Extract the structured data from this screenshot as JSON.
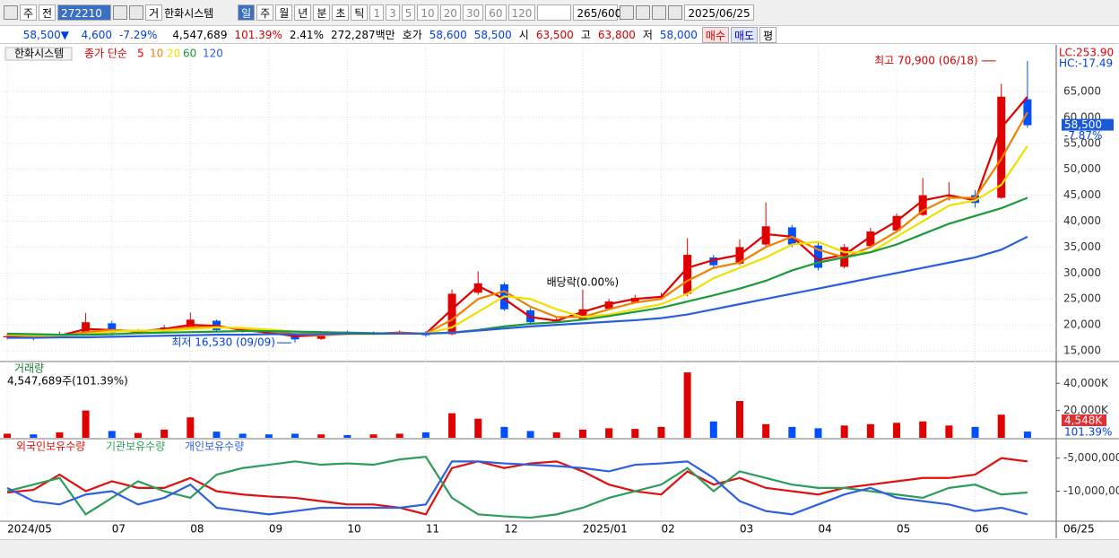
{
  "toolbar": {
    "period": "주",
    "prev": "전",
    "code": "272210",
    "exchange": "거",
    "name": "한화시스템",
    "timeframes": [
      "일",
      "주",
      "월",
      "년",
      "분",
      "초",
      "틱"
    ],
    "intervals": [
      "1",
      "3",
      "5",
      "10",
      "20",
      "30",
      "60",
      "120"
    ],
    "count": "265/600",
    "date": "2025/06/25"
  },
  "quote": {
    "price": "58,500▼",
    "change": "4,600",
    "change_pct": "-7.29%",
    "volume": "4,547,689",
    "volume_ratio": "101.39%",
    "turnover": "2.41%",
    "market_cap": "272,287백만",
    "bid_ask_label": "호가",
    "ask": "58,600",
    "bid": "58,500",
    "open_label": "시",
    "open": "63,500",
    "high_label": "고",
    "high": "63,800",
    "low_label": "저",
    "low": "58,000",
    "buy": "매수",
    "sell": "매도",
    "eval": "평"
  },
  "chart_data": [
    {
      "type": "candlestick",
      "name": "한화시스템",
      "indicator": "종가 단순",
      "lc": "LC:253.90",
      "hc": "HC:-17.49",
      "high_label": "최고 70,900 (06/18)",
      "low_label": "최저 16,530 (09/09)",
      "dividend_label": "배당락(0.00%)",
      "dividend_x": 22,
      "last_label": "58,500",
      "last_change": "-7.87%",
      "up_color": "#e00000",
      "down_color": "#0050ff",
      "grid": true,
      "open": [
        17600,
        17800,
        17600,
        18300,
        20300,
        18400,
        18800,
        19400,
        20800,
        19000,
        18700,
        18100,
        17300,
        18600,
        18200,
        18400,
        18500,
        18200,
        26200,
        27800,
        22800,
        20600,
        21100,
        23100,
        24400,
        25300,
        26000,
        33000,
        31800,
        35500,
        38800,
        35300,
        31200,
        35200,
        38200,
        41200,
        44800,
        45000,
        44500,
        63500
      ],
      "high": [
        18300,
        18200,
        18700,
        22300,
        20800,
        19200,
        20000,
        22400,
        21000,
        19400,
        19000,
        18400,
        18800,
        18900,
        18700,
        18900,
        18800,
        26800,
        30300,
        28200,
        23200,
        21500,
        23400,
        25000,
        25800,
        26200,
        36700,
        33500,
        36500,
        43600,
        39300,
        36000,
        35600,
        38700,
        41500,
        48300,
        47500,
        46000,
        66500,
        70900
      ],
      "low": [
        17200,
        17000,
        17400,
        18100,
        18300,
        18200,
        18600,
        19200,
        18700,
        18500,
        18000,
        16530,
        17100,
        18000,
        18000,
        18200,
        17700,
        18000,
        25800,
        22700,
        20000,
        20300,
        20900,
        22900,
        24100,
        25000,
        25500,
        30800,
        31500,
        35000,
        35000,
        30500,
        30900,
        35000,
        38000,
        41000,
        44000,
        42600,
        44300,
        58000
      ],
      "close": [
        17800,
        17600,
        18200,
        20500,
        18500,
        18700,
        19500,
        21000,
        19000,
        18800,
        18200,
        17200,
        18500,
        18300,
        18400,
        18600,
        18000,
        26000,
        28000,
        23000,
        20500,
        21000,
        23000,
        24500,
        25200,
        25500,
        33500,
        31500,
        35000,
        39000,
        35500,
        31000,
        35000,
        38000,
        41000,
        45000,
        45000,
        43500,
        64000,
        58500
      ],
      "series": [
        {
          "name": "5",
          "color": "#e00000",
          "values": [
            17900,
            17700,
            17900,
            19200,
            19000,
            18700,
            19200,
            20000,
            19800,
            19000,
            18500,
            17800,
            18000,
            18300,
            18300,
            18500,
            18300,
            23000,
            27500,
            25000,
            21500,
            20800,
            22500,
            24000,
            25000,
            25400,
            31000,
            32500,
            33500,
            37500,
            37000,
            32500,
            33500,
            37000,
            40000,
            44000,
            45000,
            44000,
            58000,
            64000
          ]
        },
        {
          "name": "10",
          "color": "#f08000",
          "values": [
            18000,
            17800,
            17800,
            18600,
            19000,
            18800,
            19000,
            19500,
            19600,
            19300,
            18800,
            18200,
            18000,
            18200,
            18300,
            18400,
            18300,
            21000,
            25000,
            26500,
            23500,
            21500,
            21500,
            23000,
            24300,
            25000,
            28500,
            31000,
            32000,
            35000,
            37000,
            34500,
            33000,
            35000,
            38000,
            42000,
            44500,
            44500,
            52000,
            61000
          ]
        },
        {
          "name": "20",
          "color": "#f0e000",
          "values": [
            18200,
            18000,
            17900,
            18200,
            18700,
            18900,
            18900,
            19200,
            19500,
            19400,
            19100,
            18700,
            18300,
            18200,
            18200,
            18300,
            18300,
            19500,
            22500,
            25500,
            25000,
            23000,
            21500,
            22000,
            23000,
            24000,
            26000,
            29000,
            31000,
            33000,
            35500,
            36000,
            34000,
            34000,
            37000,
            40000,
            43000,
            44000,
            47000,
            54500
          ]
        },
        {
          "name": "60",
          "color": "#1a9a3a",
          "values": [
            18300,
            18200,
            18100,
            18100,
            18200,
            18400,
            18500,
            18600,
            18700,
            18800,
            18800,
            18700,
            18600,
            18500,
            18400,
            18300,
            18300,
            18500,
            19000,
            19700,
            20200,
            20500,
            21000,
            21700,
            22500,
            23300,
            24500,
            25700,
            27000,
            28500,
            30500,
            32000,
            33000,
            34000,
            35500,
            37500,
            39500,
            41000,
            42500,
            44500
          ]
        },
        {
          "name": "120",
          "color": "#2a5ee0",
          "values": [
            17500,
            17500,
            17600,
            17600,
            17700,
            17800,
            17900,
            18000,
            18100,
            18100,
            18200,
            18200,
            18200,
            18300,
            18300,
            18300,
            18300,
            18500,
            18900,
            19300,
            19700,
            20000,
            20300,
            20600,
            20900,
            21300,
            22000,
            23000,
            24000,
            25000,
            26000,
            27000,
            28000,
            29000,
            30000,
            31000,
            32000,
            33000,
            34500,
            37000
          ]
        }
      ],
      "xlim": [
        -0.14,
        40.1
      ],
      "xticks": [
        {
          "value": 0,
          "label": "2024/05"
        },
        {
          "value": 4,
          "label": "07"
        },
        {
          "value": 7,
          "label": "08"
        },
        {
          "value": 10,
          "label": "09"
        },
        {
          "value": 13,
          "label": "10"
        },
        {
          "value": 16,
          "label": "11"
        },
        {
          "value": 19,
          "label": "12"
        },
        {
          "value": 22,
          "label": "2025/01"
        },
        {
          "value": 25,
          "label": "02"
        },
        {
          "value": 28,
          "label": "03"
        },
        {
          "value": 31,
          "label": "04"
        },
        {
          "value": 34,
          "label": "05"
        },
        {
          "value": 37,
          "label": "06"
        }
      ],
      "x_last_label": "06/25",
      "ylim": [
        13100,
        73650
      ],
      "yticks": [
        {
          "value": 15000,
          "label": "15,000"
        },
        {
          "value": 20000,
          "label": "20,000"
        },
        {
          "value": 25000,
          "label": "25,000"
        },
        {
          "value": 30000,
          "label": "30,000"
        },
        {
          "value": 35000,
          "label": "35,000"
        },
        {
          "value": 40000,
          "label": "40,000"
        },
        {
          "value": 45000,
          "label": "45,000"
        },
        {
          "value": 50000,
          "label": "50,000"
        },
        {
          "value": 55000,
          "label": "55,000"
        },
        {
          "value": 60000,
          "label": "60,000"
        },
        {
          "value": 65000,
          "label": "65,000"
        }
      ]
    },
    {
      "type": "bar",
      "title": "거래량",
      "subtitle": "4,547,689주(101.39%)",
      "last_label": "4,548K",
      "last_ratio": "101.39%",
      "values": [
        3000,
        2500,
        4000,
        20000,
        5000,
        3500,
        6000,
        15000,
        4500,
        3000,
        2500,
        3000,
        2500,
        2000,
        2500,
        3000,
        4000,
        18000,
        14000,
        8000,
        5000,
        4000,
        6000,
        7000,
        6500,
        8000,
        48000,
        12000,
        27000,
        10000,
        8000,
        7000,
        9000,
        10000,
        11000,
        12000,
        9000,
        8000,
        17000,
        4548
      ],
      "ylim": [
        0,
        54000
      ],
      "yticks": [
        {
          "value": 20000,
          "label": "20,000K"
        },
        {
          "value": 40000,
          "label": "40,000K"
        }
      ]
    },
    {
      "type": "line",
      "series": [
        {
          "name": "외국인보유수량",
          "color": "#e01010",
          "values": [
            -10200000,
            -9800000,
            -7500000,
            -10000000,
            -8500000,
            -9500000,
            -9500000,
            -8000000,
            -10000000,
            -10500000,
            -10800000,
            -11000000,
            -11500000,
            -12000000,
            -12000000,
            -12500000,
            -13500000,
            -6500000,
            -5500000,
            -6500000,
            -5800000,
            -5500000,
            -7000000,
            -9000000,
            -10000000,
            -10500000,
            -7000000,
            -9000000,
            -8000000,
            -9500000,
            -10000000,
            -10500000,
            -9500000,
            -9000000,
            -8500000,
            -8000000,
            -8000000,
            -7500000,
            -5000000,
            -5500000
          ]
        },
        {
          "name": "기관보유수량",
          "color": "#2e9c5a",
          "values": [
            -10000000,
            -9000000,
            -8000000,
            -13500000,
            -11000000,
            -8500000,
            -10000000,
            -11000000,
            -7500000,
            -6500000,
            -6000000,
            -5500000,
            -6000000,
            -5800000,
            -6000000,
            -5200000,
            -4800000,
            -11000000,
            -13500000,
            -13800000,
            -14000000,
            -13500000,
            -12500000,
            -11000000,
            -10000000,
            -9000000,
            -6500000,
            -10000000,
            -7000000,
            -8000000,
            -9000000,
            -9500000,
            -9500000,
            -10000000,
            -10500000,
            -11000000,
            -9500000,
            -9000000,
            -10500000,
            -10200000
          ]
        },
        {
          "name": "개인보유수량",
          "color": "#3060e0",
          "values": [
            -9500000,
            -11500000,
            -12000000,
            -10500000,
            -10000000,
            -12000000,
            -11000000,
            -9000000,
            -12500000,
            -13000000,
            -13500000,
            -13000000,
            -12500000,
            -12500000,
            -12500000,
            -12500000,
            -12000000,
            -5500000,
            -5500000,
            -5800000,
            -6000000,
            -6200000,
            -6500000,
            -7000000,
            -6000000,
            -5800000,
            -5500000,
            -8000000,
            -11500000,
            -13000000,
            -13500000,
            -12000000,
            -10500000,
            -9500000,
            -11000000,
            -11500000,
            -12000000,
            -13000000,
            -12500000,
            -13500000
          ]
        }
      ],
      "ylim": [
        -14400000,
        -2200000
      ],
      "yticks": [
        {
          "value": -5000000,
          "label": "-5,000,000"
        },
        {
          "value": -10000000,
          "label": "-10,000,000"
        }
      ]
    }
  ]
}
